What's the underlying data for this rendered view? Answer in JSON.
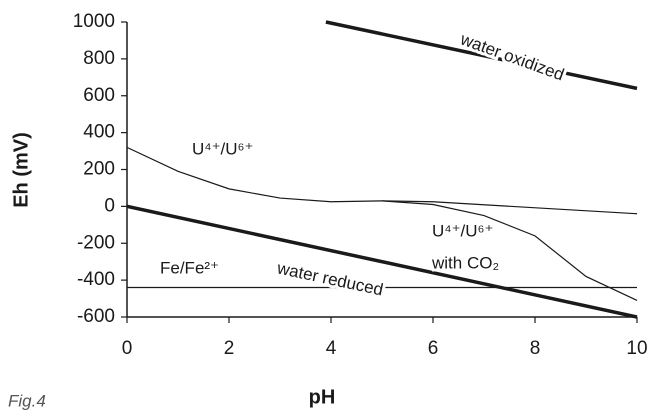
{
  "chart_data": {
    "type": "line",
    "xlabel": "pH",
    "ylabel": "Eh (mV)",
    "caption": "Fig.4",
    "xlim": [
      0,
      10
    ],
    "ylim": [
      -600,
      1000
    ],
    "xticks": [
      0,
      2,
      4,
      6,
      8,
      10
    ],
    "yticks": [
      -600,
      -400,
      -200,
      0,
      200,
      400,
      600,
      800,
      1000
    ],
    "grid": false,
    "series": [
      {
        "color": "#1a1a1a",
        "x": [
          3.9,
          10
        ],
        "values": [
          1000,
          640
        ]
      },
      {
        "color": "#1a1a1a",
        "x": [
          0,
          10
        ],
        "values": [
          0,
          -600
        ]
      },
      {
        "color": "#1a1a1a",
        "x": [
          0,
          1,
          2,
          3,
          4,
          5,
          6,
          10
        ],
        "values": [
          320,
          190,
          95,
          45,
          25,
          30,
          25,
          -40
        ]
      },
      {
        "color": "#1a1a1a",
        "x": [
          5,
          6,
          7,
          8,
          9,
          10
        ],
        "values": [
          30,
          10,
          -50,
          -160,
          -380,
          -510
        ]
      },
      {
        "color": "#1a1a1a",
        "x": [
          0,
          10
        ],
        "values": [
          -440,
          -440
        ]
      }
    ],
    "annotations": [
      "water oxidized",
      "U⁴⁺/U⁶⁺",
      "U⁴⁺/U⁶⁺",
      "with CO₂",
      "Fe/Fe²⁺",
      "water reduced"
    ]
  }
}
